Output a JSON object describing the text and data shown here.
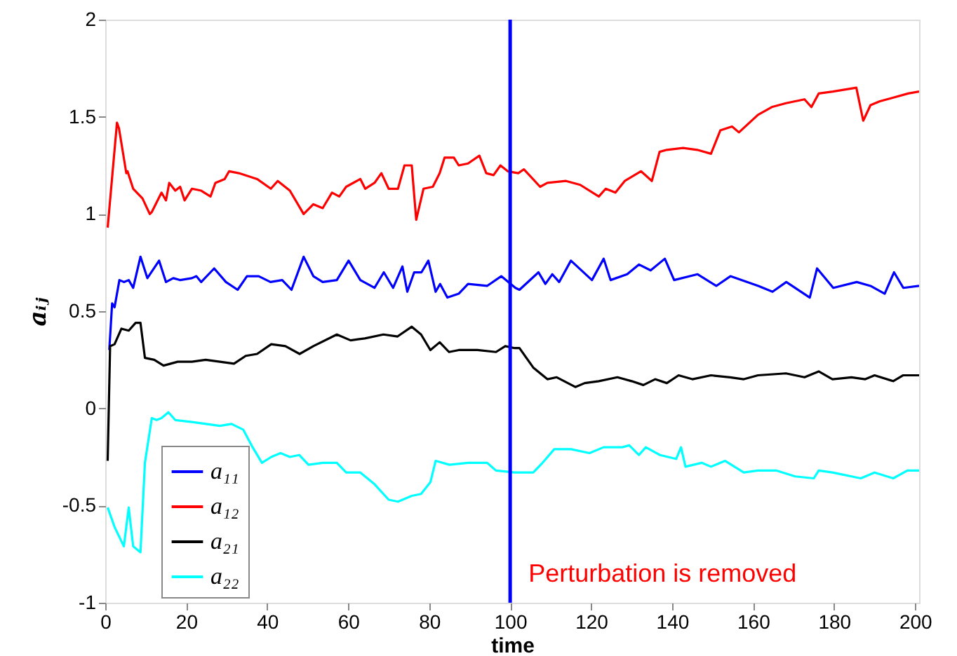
{
  "chart_data": {
    "type": "line",
    "xlabel": "time",
    "ylabel": "aᵢⱼ",
    "xlim": [
      0,
      201
    ],
    "ylim": [
      -1,
      2
    ],
    "xticks": [
      0,
      20,
      40,
      60,
      80,
      100,
      120,
      140,
      160,
      180,
      200
    ],
    "yticks": [
      -1,
      -0.5,
      0,
      0.5,
      1,
      1.5,
      2
    ],
    "grid": false,
    "legend": "bottom left",
    "marker": "none",
    "line_style": "solid",
    "ref_lines": [
      {
        "axis": "x",
        "value": 100,
        "color": "#0000ff"
      }
    ],
    "annotations": [
      "Perturbation is removed"
    ],
    "series": [
      {
        "name": "a₁₁",
        "color": "#0000ff",
        "x": [
          1,
          1.7,
          2.3,
          3.5,
          4.6,
          5.8,
          6.9,
          8.7,
          10.4,
          13.3,
          15,
          16.8,
          18.5,
          21.4,
          22.5,
          23.7,
          26.9,
          29.8,
          32.7,
          35,
          37.9,
          40.8,
          43.7,
          46,
          49,
          51.4,
          53.7,
          57.2,
          60.1,
          63,
          66.5,
          68.8,
          71.1,
          73.4,
          74.6,
          76.3,
          78.1,
          79.8,
          81.6,
          82.7,
          84.5,
          87.3,
          89.6,
          94.3,
          97.8,
          101.3,
          102.3,
          107,
          108.7,
          110.4,
          112.1,
          115,
          120.2,
          123.1,
          124.8,
          128.9,
          131.8,
          134.7,
          138.2,
          140.5,
          146.3,
          150.9,
          154.4,
          161.3,
          164.8,
          168.2,
          174,
          175.8,
          179.8,
          185.6,
          189,
          192.5,
          194.8,
          197.1,
          201
        ],
        "values": [
          0.3,
          0.54,
          0.52,
          0.66,
          0.65,
          0.66,
          0.62,
          0.78,
          0.67,
          0.76,
          0.65,
          0.67,
          0.66,
          0.67,
          0.68,
          0.65,
          0.72,
          0.65,
          0.61,
          0.68,
          0.68,
          0.65,
          0.66,
          0.61,
          0.78,
          0.68,
          0.65,
          0.66,
          0.76,
          0.66,
          0.62,
          0.7,
          0.62,
          0.73,
          0.6,
          0.7,
          0.7,
          0.76,
          0.6,
          0.64,
          0.57,
          0.59,
          0.64,
          0.63,
          0.68,
          0.62,
          0.61,
          0.7,
          0.64,
          0.69,
          0.65,
          0.76,
          0.66,
          0.77,
          0.66,
          0.69,
          0.74,
          0.71,
          0.77,
          0.66,
          0.69,
          0.63,
          0.68,
          0.63,
          0.6,
          0.65,
          0.57,
          0.72,
          0.62,
          0.65,
          0.63,
          0.59,
          0.7,
          0.62,
          0.63
        ]
      },
      {
        "name": "a₁₂",
        "color": "#ff0000",
        "x": [
          0.6,
          2.9,
          3.4,
          5.2,
          5.5,
          6.9,
          9.2,
          11,
          11.5,
          13.9,
          15,
          15.8,
          17.3,
          18.5,
          19.6,
          21.4,
          23.7,
          26,
          27.2,
          29.5,
          30.6,
          33,
          37.5,
          40.9,
          42.6,
          45.6,
          49,
          51.4,
          53.7,
          56,
          57.8,
          59.5,
          63,
          64.2,
          66.5,
          68.2,
          70,
          72.3,
          73.9,
          75.7,
          76.8,
          78.6,
          80.9,
          82.6,
          83.8,
          86.1,
          87.3,
          89.6,
          92.4,
          94.1,
          95.9,
          97.6,
          99.4,
          102,
          103.4,
          107.4,
          109.2,
          113.8,
          117.3,
          121.9,
          123.6,
          126,
          128.3,
          132.3,
          135,
          136.9,
          138.7,
          142.7,
          146.2,
          149.6,
          151.9,
          154.8,
          156.5,
          161.2,
          164.6,
          168.1,
          172.7,
          174.4,
          176.2,
          179.7,
          185.5,
          187.2,
          189,
          191.3,
          194.8,
          198.3,
          201
        ],
        "values": [
          0.93,
          1.47,
          1.44,
          1.21,
          1.22,
          1.13,
          1.08,
          1.0,
          1.01,
          1.11,
          1.07,
          1.16,
          1.12,
          1.14,
          1.07,
          1.13,
          1.12,
          1.09,
          1.16,
          1.18,
          1.22,
          1.21,
          1.18,
          1.13,
          1.17,
          1.12,
          1.0,
          1.05,
          1.03,
          1.11,
          1.09,
          1.14,
          1.18,
          1.13,
          1.16,
          1.21,
          1.13,
          1.13,
          1.25,
          1.25,
          0.97,
          1.13,
          1.14,
          1.21,
          1.29,
          1.29,
          1.25,
          1.26,
          1.3,
          1.21,
          1.2,
          1.25,
          1.22,
          1.21,
          1.23,
          1.14,
          1.16,
          1.17,
          1.15,
          1.09,
          1.13,
          1.11,
          1.17,
          1.22,
          1.17,
          1.32,
          1.33,
          1.34,
          1.33,
          1.31,
          1.43,
          1.45,
          1.42,
          1.51,
          1.55,
          1.57,
          1.59,
          1.55,
          1.62,
          1.63,
          1.65,
          1.48,
          1.56,
          1.58,
          1.6,
          1.62,
          1.63
        ]
      },
      {
        "name": "a₂₁",
        "color": "#000000",
        "x": [
          0.6,
          1.2,
          2.3,
          4,
          5.8,
          7.5,
          8.7,
          9.8,
          12.1,
          14.4,
          17.9,
          21.4,
          24.8,
          28.3,
          31.8,
          34.7,
          37.5,
          41,
          44.5,
          48,
          51.4,
          57.2,
          60.6,
          64.1,
          68.7,
          72.2,
          75.7,
          78,
          80.3,
          82.6,
          84.9,
          87.3,
          91.9,
          96.5,
          98.8,
          101.1,
          102.3,
          105.7,
          109.2,
          111.5,
          116.1,
          118.4,
          121.9,
          126.5,
          130,
          132.9,
          135.8,
          138.7,
          141.6,
          145,
          149.6,
          154.3,
          157.7,
          161.2,
          168.1,
          172.7,
          176.2,
          179.6,
          184.3,
          187.7,
          190,
          194.6,
          197,
          201
        ],
        "values": [
          -0.27,
          0.32,
          0.33,
          0.41,
          0.4,
          0.44,
          0.44,
          0.26,
          0.25,
          0.22,
          0.24,
          0.24,
          0.25,
          0.24,
          0.23,
          0.27,
          0.28,
          0.33,
          0.32,
          0.28,
          0.32,
          0.38,
          0.35,
          0.36,
          0.38,
          0.37,
          0.42,
          0.38,
          0.3,
          0.34,
          0.29,
          0.3,
          0.3,
          0.29,
          0.32,
          0.31,
          0.31,
          0.21,
          0.15,
          0.16,
          0.11,
          0.13,
          0.14,
          0.16,
          0.14,
          0.12,
          0.15,
          0.13,
          0.17,
          0.15,
          0.17,
          0.16,
          0.15,
          0.17,
          0.18,
          0.16,
          0.19,
          0.15,
          0.16,
          0.15,
          0.17,
          0.14,
          0.17,
          0.17
        ]
      },
      {
        "name": "a₂₂",
        "color": "#00ffff",
        "x": [
          0.6,
          2.3,
          4.6,
          5.8,
          6.9,
          8.7,
          9.8,
          11.5,
          12.7,
          13.9,
          15.6,
          17.3,
          21.4,
          24.9,
          28.3,
          31.2,
          34.1,
          36.4,
          38.7,
          41,
          43.3,
          45.6,
          47.9,
          50.2,
          53.7,
          57.2,
          59.5,
          63,
          66.5,
          70,
          72.3,
          75.7,
          78,
          80.3,
          81.6,
          85,
          89.6,
          94.3,
          96.5,
          101.1,
          105.7,
          108,
          110.9,
          115,
          119.6,
          123.1,
          127.7,
          129.4,
          131.8,
          133.5,
          137,
          141,
          142.2,
          143.3,
          147.3,
          149.6,
          153.1,
          157.7,
          161.2,
          165.8,
          170.4,
          175,
          176.2,
          179.6,
          186.6,
          190,
          194.6,
          198.1,
          201
        ],
        "values": [
          -0.51,
          -0.61,
          -0.71,
          -0.51,
          -0.71,
          -0.74,
          -0.28,
          -0.05,
          -0.06,
          -0.05,
          -0.02,
          -0.06,
          -0.07,
          -0.08,
          -0.09,
          -0.08,
          -0.11,
          -0.2,
          -0.28,
          -0.25,
          -0.23,
          -0.25,
          -0.24,
          -0.29,
          -0.28,
          -0.28,
          -0.33,
          -0.33,
          -0.39,
          -0.47,
          -0.48,
          -0.45,
          -0.44,
          -0.38,
          -0.27,
          -0.29,
          -0.28,
          -0.28,
          -0.32,
          -0.33,
          -0.33,
          -0.28,
          -0.21,
          -0.21,
          -0.23,
          -0.2,
          -0.2,
          -0.19,
          -0.24,
          -0.2,
          -0.24,
          -0.26,
          -0.2,
          -0.3,
          -0.28,
          -0.3,
          -0.27,
          -0.33,
          -0.32,
          -0.32,
          -0.35,
          -0.36,
          -0.32,
          -0.33,
          -0.36,
          -0.33,
          -0.36,
          -0.32,
          -0.32
        ]
      }
    ]
  }
}
